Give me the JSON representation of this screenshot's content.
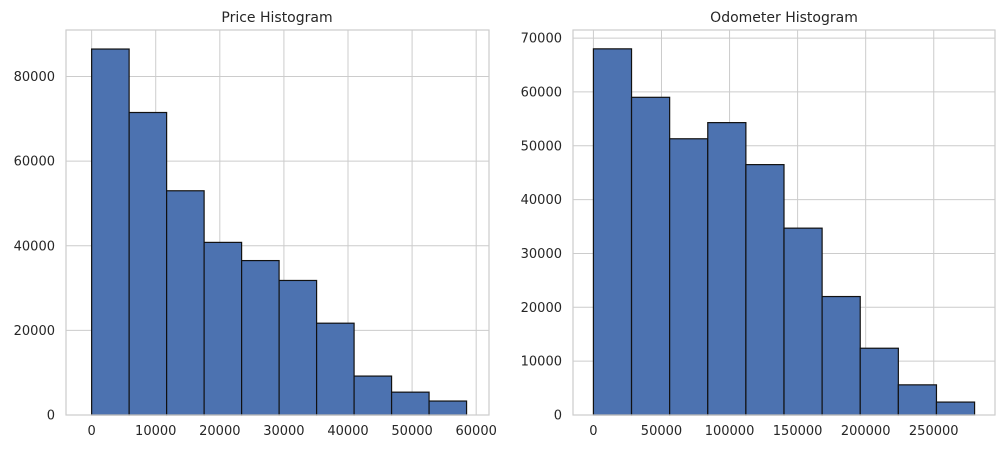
{
  "chart_data": [
    {
      "type": "bar",
      "title": "Price Histogram",
      "xlabel": "",
      "ylabel": "",
      "bin_edges": [
        0,
        5850,
        11700,
        17550,
        23400,
        29250,
        35100,
        40950,
        46800,
        52650,
        58500
      ],
      "values": [
        86500,
        71500,
        53000,
        40800,
        36500,
        31800,
        21700,
        9200,
        5400,
        3300
      ],
      "xlim": [
        -4000,
        62000
      ],
      "ylim": [
        0,
        91000
      ],
      "xticks": [
        0,
        10000,
        20000,
        30000,
        40000,
        50000,
        60000
      ],
      "yticks": [
        0,
        20000,
        40000,
        60000,
        80000
      ],
      "grid": true,
      "colors": {
        "bar": "#4c72b0",
        "edge": "#111111",
        "grid": "#cccccc"
      }
    },
    {
      "type": "bar",
      "title": "Odometer Histogram",
      "xlabel": "",
      "ylabel": "",
      "bin_edges": [
        0,
        28000,
        56000,
        84000,
        112000,
        140000,
        168000,
        196000,
        224000,
        252000,
        280000
      ],
      "values": [
        68000,
        59000,
        51300,
        54300,
        46500,
        34700,
        22000,
        12400,
        5600,
        2400
      ],
      "xlim": [
        -15000,
        295000
      ],
      "ylim": [
        0,
        71500
      ],
      "xticks": [
        0,
        50000,
        100000,
        150000,
        200000,
        250000
      ],
      "yticks": [
        0,
        10000,
        20000,
        30000,
        40000,
        50000,
        60000,
        70000
      ],
      "grid": true,
      "colors": {
        "bar": "#4c72b0",
        "edge": "#111111",
        "grid": "#cccccc"
      }
    }
  ]
}
